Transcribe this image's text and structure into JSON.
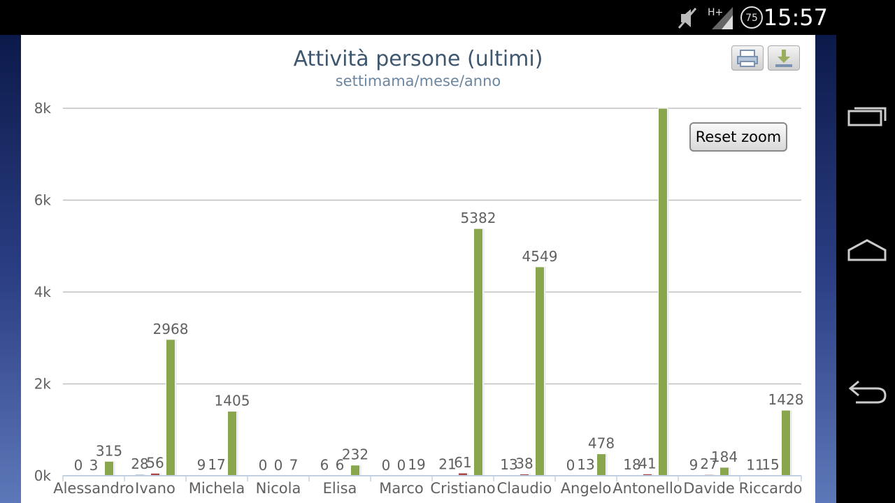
{
  "status_bar": {
    "time": "15:57",
    "icons": [
      "mute-icon",
      "hplus-signal-icon",
      "battery-75-icon"
    ],
    "battery": "75",
    "network": "H+"
  },
  "chart_toolbar": {
    "print_icon": "print-icon",
    "download_icon": "download-icon",
    "reset_zoom_label": "Reset zoom"
  },
  "nav_bar": {
    "icons": [
      "recent-apps-icon",
      "home-icon",
      "back-icon"
    ]
  },
  "colors": {
    "week": "#4572a7",
    "month": "#aa4643",
    "year": "#89a54e"
  },
  "chart_data": {
    "type": "bar",
    "title": "Attività persone (ultimi)",
    "subtitle": "settimama/mese/anno",
    "categories": [
      "Alessandro",
      "Ivano",
      "Michela",
      "Nicola",
      "Elisa",
      "Marco",
      "Cristiano",
      "Claudio",
      "Angelo",
      "Antonello",
      "Davide",
      "Riccardo"
    ],
    "series": [
      {
        "values": [
          0,
          28,
          9,
          0,
          6,
          0,
          21,
          13,
          0,
          18,
          9,
          11
        ],
        "labels": [
          "0",
          "28",
          "9",
          "0",
          "6",
          "0",
          "21",
          "13",
          "0",
          "18",
          "9",
          "11"
        ]
      },
      {
        "values": [
          3,
          56,
          17,
          0,
          6,
          0,
          61,
          38,
          13,
          41,
          27,
          15
        ],
        "labels": [
          "3",
          "56",
          "17",
          "0",
          "6",
          "0",
          "61",
          "38",
          "13",
          "41",
          "27",
          "15"
        ]
      },
      {
        "values": [
          315,
          2968,
          1405,
          7,
          232,
          19,
          5382,
          4549,
          478,
          8000,
          184,
          1428
        ],
        "labels": [
          "315",
          "2968",
          "1405",
          "7",
          "232",
          "19",
          "5382",
          "4549",
          "478",
          "",
          "184",
          "1428"
        ]
      }
    ],
    "y_ticks": [
      "0k",
      "2k",
      "4k",
      "6k",
      "8k"
    ],
    "ylim": [
      0,
      8000
    ],
    "grid": true,
    "legend": "none"
  }
}
